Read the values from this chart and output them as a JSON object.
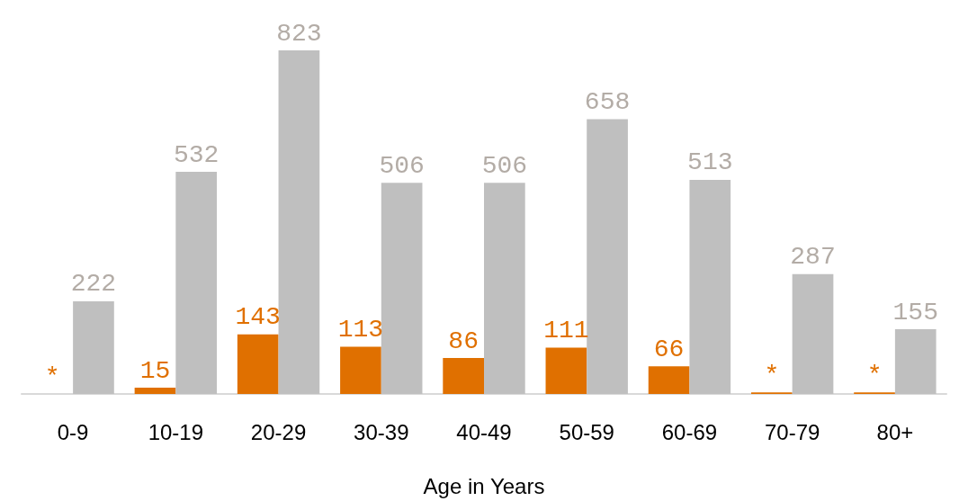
{
  "chart_data": {
    "type": "bar",
    "xlabel": "Age in Years",
    "categories": [
      "0-9",
      "10-19",
      "20-29",
      "30-39",
      "40-49",
      "50-59",
      "60-69",
      "70-79",
      "80+"
    ],
    "series": [
      {
        "color": "#e07000",
        "values": [
          0,
          15,
          143,
          113,
          86,
          111,
          66,
          4,
          4
        ],
        "value_labels": [
          "*",
          "15",
          "143",
          "113",
          "86",
          "111",
          "66",
          "*",
          "*"
        ]
      },
      {
        "color": "#bfbfbf",
        "values": [
          222,
          532,
          823,
          506,
          506,
          658,
          513,
          287,
          155
        ],
        "value_labels": [
          "222",
          "532",
          "823",
          "506",
          "506",
          "658",
          "513",
          "287",
          "155"
        ]
      }
    ],
    "ylim": [
      0,
      823
    ]
  }
}
